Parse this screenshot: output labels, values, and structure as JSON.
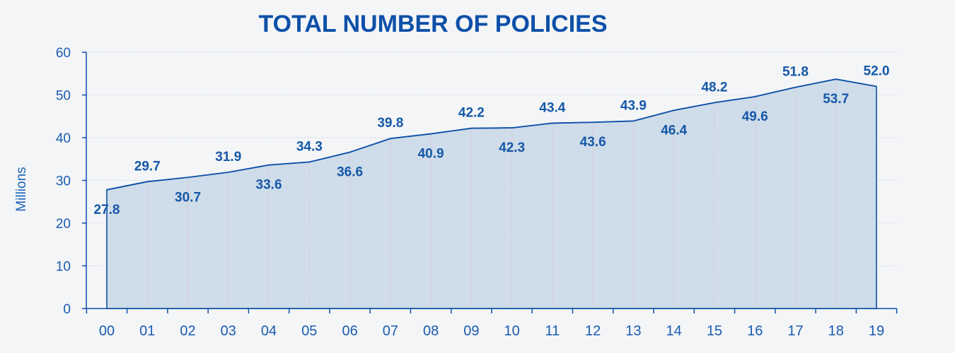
{
  "chart_data": {
    "type": "area",
    "title": "TOTAL NUMBER OF POLICIES",
    "ylabel": "Millions",
    "xlabel": "",
    "ylim": [
      0,
      60
    ],
    "yticks": [
      0,
      10,
      20,
      30,
      40,
      50,
      60
    ],
    "categories": [
      "00",
      "01",
      "02",
      "03",
      "04",
      "05",
      "06",
      "07",
      "08",
      "09",
      "10",
      "11",
      "12",
      "13",
      "14",
      "15",
      "16",
      "17",
      "18",
      "19"
    ],
    "values": [
      27.8,
      29.7,
      30.7,
      31.9,
      33.6,
      34.3,
      36.6,
      39.8,
      40.9,
      42.2,
      42.3,
      43.4,
      43.6,
      43.9,
      46.4,
      48.2,
      49.6,
      51.8,
      53.7,
      52.0
    ],
    "data_labels": [
      "27.8",
      "29.7",
      "30.7",
      "31.9",
      "33.6",
      "34.3",
      "36.6",
      "39.8",
      "40.9",
      "42.2",
      "42.3",
      "43.4",
      "43.6",
      "43.9",
      "46.4",
      "48.2",
      "49.6",
      "51.8",
      "53.7",
      "52.0"
    ],
    "label_positions": [
      "below",
      "above",
      "below",
      "above",
      "below",
      "above",
      "below",
      "above",
      "below",
      "above",
      "below",
      "above",
      "below",
      "above",
      "below",
      "above",
      "below",
      "above",
      "below",
      "above"
    ],
    "grid": true,
    "legend": "none",
    "colors": {
      "line": "#0d50a8",
      "fill": "#cfdce9",
      "title": "#0d50a8",
      "text": "#1a5bb0",
      "grid": "#d2d8e0",
      "vgrid": "#e3b7c4",
      "background": "#f4f5f7"
    }
  }
}
